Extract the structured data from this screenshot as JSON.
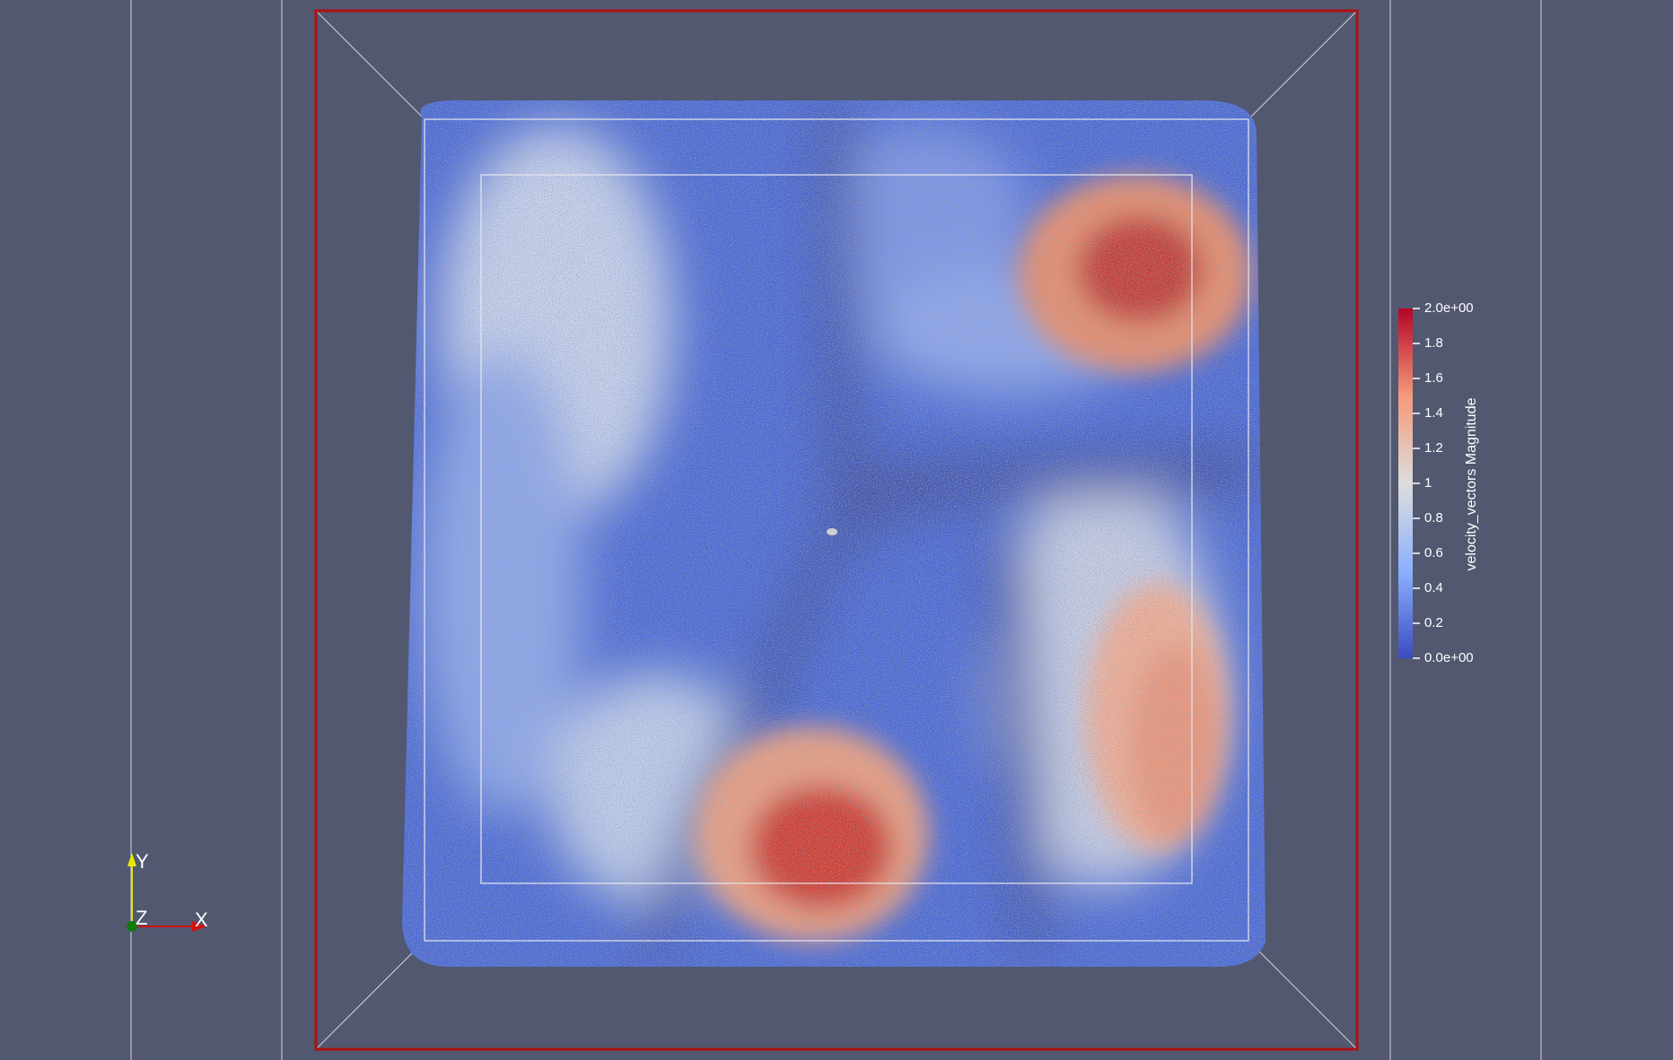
{
  "viewport": {
    "background": "#525870",
    "outline_color": "#b01010",
    "box_color": "#e8e8ee"
  },
  "scalar_bar": {
    "title": "velocity_vectors Magnitude",
    "range": [
      0.0,
      2.0
    ],
    "colormap": "Cool to Warm",
    "color_stops": [
      "#3b4cc0",
      "#8db0fe",
      "#dddddd",
      "#f49a7b",
      "#b40426"
    ],
    "tick_labels": [
      "2.0e+00",
      "1.8",
      "1.6",
      "1.4",
      "1.2",
      "1",
      "0.8",
      "0.6",
      "0.4",
      "0.2",
      "0.0e+00"
    ]
  },
  "orientation_axes": {
    "x_label": "X",
    "y_label": "Y",
    "z_label": "Z",
    "x_color": "#d21010",
    "y_color": "#e8e800",
    "z_color": "#107a10"
  },
  "particles": {
    "representation": "Points",
    "color_by": "velocity_vectors Magnitude",
    "hotspots": [
      {
        "name": "bottom-center",
        "magnitude": 2.0
      },
      {
        "name": "top-right",
        "magnitude": 1.9
      },
      {
        "name": "right-lower",
        "magnitude": 1.4
      },
      {
        "name": "top-left",
        "magnitude": 1.0
      }
    ]
  }
}
